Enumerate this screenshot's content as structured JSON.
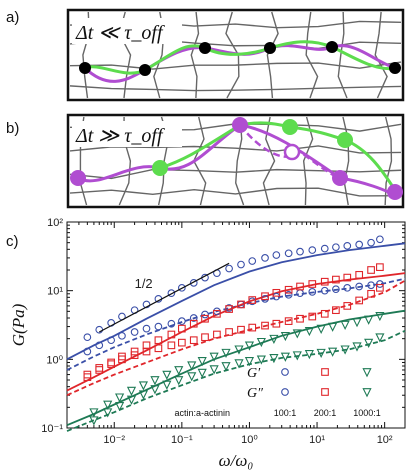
{
  "panels": {
    "a": {
      "label": "a)",
      "annotation": "Δt ≪ τ_off"
    },
    "b": {
      "label": "b)",
      "annotation": "Δt ≫ τ_off"
    },
    "c": {
      "label": "c)"
    }
  },
  "chart_data": {
    "type": "scatter",
    "xlabel": "ω/ω₀",
    "ylabel": "G(Pa)",
    "xscale": "log",
    "yscale": "log",
    "xlim": [
      0.002,
      200
    ],
    "ylim": [
      0.1,
      100
    ],
    "xticks": [
      "10⁻²",
      "10⁻¹",
      "10⁰",
      "10¹",
      "10²"
    ],
    "xtick_values": [
      0.01,
      0.1,
      1,
      10,
      100
    ],
    "yticks": [
      "10⁻¹",
      "10⁰",
      "10¹",
      "10²"
    ],
    "ytick_values": [
      0.1,
      1,
      10,
      100
    ],
    "slope_annotation": "1/2",
    "slope_line": {
      "x": [
        0.006,
        0.5
      ],
      "y": [
        2.5,
        25
      ]
    },
    "legend": {
      "rows": [
        "G′",
        "G″"
      ],
      "title": "actin:a-actinin",
      "ratios": [
        "100:1",
        "200:1",
        "1000:1"
      ],
      "placement": "bottom-right"
    },
    "colors": {
      "100:1": "#3a4fa8",
      "200:1": "#e0262b",
      "1000:1": "#1e7a55"
    },
    "series": [
      {
        "ratio": "100:1",
        "kind": "G′",
        "marker": "circle",
        "x": [
          0.004,
          0.006,
          0.009,
          0.013,
          0.02,
          0.03,
          0.045,
          0.07,
          0.1,
          0.15,
          0.22,
          0.33,
          0.5,
          0.75,
          1.1,
          1.7,
          2.5,
          3.8,
          5.6,
          8.5,
          13,
          19,
          28,
          42,
          63,
          85
        ],
        "y": [
          2.1,
          2.7,
          3.4,
          4.2,
          5.2,
          6.3,
          7.6,
          9.2,
          11,
          13,
          15.5,
          18,
          21,
          24,
          27,
          30,
          33,
          35,
          37,
          39,
          41,
          43,
          45,
          47,
          50,
          56
        ]
      },
      {
        "ratio": "100:1",
        "kind": "G″",
        "marker": "circle-open",
        "x": [
          0.004,
          0.006,
          0.009,
          0.013,
          0.02,
          0.03,
          0.045,
          0.07,
          0.1,
          0.15,
          0.22,
          0.33,
          0.5,
          0.75,
          1.1,
          1.7,
          2.5,
          3.8,
          5.6,
          8.5,
          13,
          19,
          28,
          42,
          63,
          85
        ],
        "y": [
          1.3,
          1.6,
          1.9,
          2.2,
          2.5,
          2.8,
          3.0,
          3.3,
          3.6,
          4.0,
          4.5,
          5.0,
          5.6,
          6.3,
          7.0,
          7.6,
          8.2,
          8.7,
          9.2,
          9.6,
          10,
          10.5,
          11,
          11.5,
          12,
          12.5
        ]
      },
      {
        "ratio": "200:1",
        "kind": "G′",
        "marker": "square",
        "x": [
          0.004,
          0.006,
          0.009,
          0.013,
          0.02,
          0.03,
          0.045,
          0.07,
          0.1,
          0.15,
          0.22,
          0.33,
          0.5,
          0.75,
          1.1,
          1.7,
          2.5,
          3.8,
          5.6,
          8.5,
          13,
          19,
          28,
          42,
          63,
          85
        ],
        "y": [
          0.6,
          0.75,
          0.9,
          1.1,
          1.3,
          1.6,
          1.9,
          2.3,
          2.8,
          3.3,
          3.9,
          4.6,
          5.4,
          6.3,
          7.3,
          8.3,
          9.3,
          10.3,
          11.5,
          12.5,
          13.5,
          14.5,
          15.5,
          17,
          20,
          22
        ]
      },
      {
        "ratio": "200:1",
        "kind": "G″",
        "marker": "square-open",
        "x": [
          0.004,
          0.006,
          0.009,
          0.013,
          0.02,
          0.03,
          0.045,
          0.07,
          0.1,
          0.15,
          0.22,
          0.33,
          0.5,
          0.75,
          1.1,
          1.7,
          2.5,
          3.8,
          5.6,
          8.5,
          13,
          19,
          28,
          42,
          63,
          85
        ],
        "y": [
          0.55,
          0.7,
          0.85,
          1.0,
          1.15,
          1.3,
          1.45,
          1.6,
          1.75,
          1.9,
          2.1,
          2.3,
          2.5,
          2.7,
          2.9,
          3.1,
          3.3,
          3.6,
          3.9,
          4.2,
          4.6,
          5.2,
          6.0,
          7.2,
          9.0,
          11
        ]
      },
      {
        "ratio": "1000:1",
        "kind": "G′",
        "marker": "triangle",
        "x": [
          0.005,
          0.008,
          0.012,
          0.018,
          0.027,
          0.04,
          0.06,
          0.09,
          0.14,
          0.2,
          0.3,
          0.45,
          0.7,
          1.0,
          1.5,
          2.3,
          3.4,
          5.1,
          7.7,
          11.5,
          17,
          26,
          39,
          58,
          85
        ],
        "y": [
          0.17,
          0.22,
          0.28,
          0.35,
          0.42,
          0.5,
          0.6,
          0.7,
          0.82,
          0.95,
          1.1,
          1.25,
          1.4,
          1.6,
          1.8,
          2.0,
          2.2,
          2.4,
          2.6,
          2.8,
          3.0,
          3.2,
          3.5,
          3.8,
          4.3
        ]
      },
      {
        "ratio": "1000:1",
        "kind": "G″",
        "marker": "triangle-open",
        "x": [
          0.005,
          0.008,
          0.012,
          0.018,
          0.027,
          0.04,
          0.06,
          0.09,
          0.14,
          0.2,
          0.3,
          0.45,
          0.7,
          1.0,
          1.5,
          2.3,
          3.4,
          5.1,
          7.7,
          11.5,
          17,
          26,
          39,
          58,
          85
        ],
        "y": [
          0.13,
          0.17,
          0.21,
          0.26,
          0.31,
          0.37,
          0.43,
          0.5,
          0.57,
          0.64,
          0.72,
          0.8,
          0.88,
          0.95,
          1.0,
          1.05,
          1.1,
          1.15,
          1.2,
          1.25,
          1.3,
          1.4,
          1.55,
          1.75,
          2.1
        ]
      }
    ],
    "fit_lines": [
      {
        "ratio": "100:1",
        "kind": "G′",
        "style": "solid",
        "x": [
          0.002,
          0.005,
          0.01,
          0.03,
          0.1,
          0.3,
          1,
          3,
          10,
          30,
          100,
          200
        ],
        "y": [
          1.0,
          1.6,
          2.2,
          3.9,
          7.1,
          12,
          19,
          26,
          33,
          39,
          45,
          49
        ]
      },
      {
        "ratio": "100:1",
        "kind": "G″",
        "style": "dashed",
        "x": [
          0.002,
          0.005,
          0.01,
          0.03,
          0.1,
          0.3,
          1,
          3,
          10,
          30,
          100,
          200
        ],
        "y": [
          0.7,
          1.1,
          1.5,
          2.3,
          3.5,
          4.9,
          6.6,
          8.2,
          9.6,
          10.8,
          12.8,
          15
        ]
      },
      {
        "ratio": "200:1",
        "kind": "G′",
        "style": "solid",
        "x": [
          0.002,
          0.005,
          0.01,
          0.03,
          0.1,
          0.3,
          1,
          3,
          10,
          30,
          100,
          200
        ],
        "y": [
          0.35,
          0.55,
          0.78,
          1.35,
          2.5,
          4.3,
          7.0,
          9.8,
          12.5,
          14.5,
          16.5,
          18
        ]
      },
      {
        "ratio": "200:1",
        "kind": "G″",
        "style": "dashed",
        "x": [
          0.002,
          0.005,
          0.01,
          0.03,
          0.1,
          0.3,
          1,
          3,
          10,
          30,
          100,
          200
        ],
        "y": [
          0.3,
          0.45,
          0.6,
          0.9,
          1.4,
          2.0,
          2.7,
          3.5,
          4.6,
          6.2,
          9.5,
          14
        ]
      },
      {
        "ratio": "1000:1",
        "kind": "G′",
        "style": "solid",
        "x": [
          0.002,
          0.005,
          0.01,
          0.03,
          0.1,
          0.3,
          1,
          3,
          10,
          30,
          100,
          200
        ],
        "y": [
          0.11,
          0.16,
          0.22,
          0.36,
          0.62,
          1.0,
          1.5,
          2.2,
          3.0,
          3.8,
          4.6,
          5.1
        ]
      },
      {
        "ratio": "1000:1",
        "kind": "G″",
        "style": "dashed",
        "x": [
          0.002,
          0.005,
          0.01,
          0.03,
          0.1,
          0.3,
          1,
          3,
          10,
          30,
          100,
          200
        ],
        "y": [
          0.09,
          0.13,
          0.17,
          0.27,
          0.42,
          0.62,
          0.85,
          1.05,
          1.2,
          1.4,
          1.9,
          2.6
        ]
      }
    ]
  }
}
